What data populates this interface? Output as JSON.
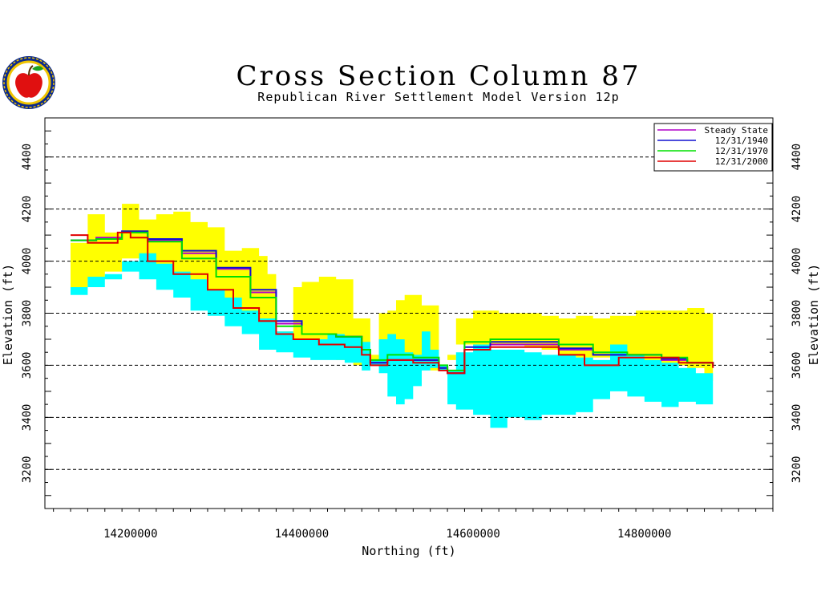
{
  "title": "Cross Section Column 87",
  "subtitle": "Republican River Settlement Model Version 12p",
  "chart_data": {
    "type": "area",
    "xlabel": "Northing (ft)",
    "ylabel": "Elevation (ft)",
    "xlim": [
      14100000,
      14950000
    ],
    "ylim": [
      3050,
      4550
    ],
    "xticks": [
      14200000,
      14400000,
      14600000,
      14800000
    ],
    "xticklabels": [
      "14200000",
      "14400000",
      "14600000",
      "14800000"
    ],
    "yticks": [
      3200,
      3400,
      3600,
      3800,
      4000,
      4200,
      4400
    ],
    "yticklabels": [
      "3200",
      "3400",
      "3600",
      "3800",
      "4000",
      "4200",
      "4400"
    ],
    "grid": "horizontal dashed",
    "legend_position": "top-right",
    "bands": [
      {
        "name": "upper layer",
        "color": "#ffff00",
        "x": [
          14130000,
          14150000,
          14170000,
          14190000,
          14210000,
          14230000,
          14250000,
          14270000,
          14290000,
          14310000,
          14330000,
          14350000,
          14360000,
          14370000,
          14380000,
          14390000,
          14400000,
          14420000,
          14440000,
          14460000,
          14480000,
          14490000,
          14500000,
          14510000,
          14520000,
          14540000,
          14550000,
          14560000,
          14570000,
          14580000,
          14600000,
          14630000,
          14660000,
          14680000,
          14700000,
          14720000,
          14740000,
          14760000,
          14790000,
          14820000,
          14850000,
          14870000,
          14880000
        ],
        "top": [
          4070,
          4180,
          4110,
          4220,
          4160,
          4180,
          4190,
          4150,
          4130,
          4040,
          4050,
          4020,
          3950,
          3730,
          3730,
          3900,
          3920,
          3940,
          3930,
          3780,
          3640,
          3800,
          3810,
          3850,
          3870,
          3830,
          3830,
          3590,
          3620,
          3780,
          3810,
          3800,
          3800,
          3790,
          3780,
          3790,
          3780,
          3790,
          3810,
          3810,
          3820,
          3800,
          3680
        ],
        "bottom": [
          3870,
          3900,
          3930,
          3960,
          4010,
          3990,
          3950,
          3920,
          3880,
          3850,
          3800,
          3770,
          3760,
          3720,
          3720,
          3700,
          3690,
          3680,
          3660,
          3620,
          3600,
          3610,
          3630,
          3630,
          3620,
          3610,
          3600,
          3580,
          3580,
          3640,
          3680,
          3680,
          3680,
          3670,
          3660,
          3640,
          3630,
          3630,
          3620,
          3610,
          3600,
          3590,
          3540
        ]
      },
      {
        "name": "lower layer",
        "color": "#00ffff",
        "x": [
          14130000,
          14150000,
          14170000,
          14190000,
          14210000,
          14230000,
          14250000,
          14270000,
          14290000,
          14310000,
          14330000,
          14350000,
          14370000,
          14390000,
          14410000,
          14430000,
          14450000,
          14470000,
          14480000,
          14490000,
          14500000,
          14510000,
          14520000,
          14530000,
          14540000,
          14550000,
          14560000,
          14570000,
          14580000,
          14600000,
          14620000,
          14640000,
          14660000,
          14680000,
          14700000,
          14720000,
          14740000,
          14760000,
          14780000,
          14800000,
          14820000,
          14840000,
          14860000,
          14880000
        ],
        "top": [
          3870,
          3900,
          3950,
          4000,
          4030,
          3990,
          3960,
          3930,
          3890,
          3860,
          3810,
          3780,
          3730,
          3700,
          3700,
          3720,
          3710,
          3690,
          3620,
          3700,
          3720,
          3700,
          3650,
          3640,
          3730,
          3660,
          3600,
          3580,
          3650,
          3680,
          3660,
          3660,
          3650,
          3640,
          3640,
          3630,
          3620,
          3680,
          3640,
          3620,
          3610,
          3590,
          3570,
          3540
        ],
        "bottom": [
          3790,
          3900,
          3940,
          3930,
          3960,
          3930,
          3890,
          3860,
          3810,
          3790,
          3750,
          3720,
          3660,
          3650,
          3630,
          3620,
          3620,
          3610,
          3580,
          3600,
          3570,
          3480,
          3450,
          3470,
          3520,
          3580,
          3590,
          3580,
          3450,
          3430,
          3410,
          3360,
          3400,
          3390,
          3410,
          3410,
          3420,
          3470,
          3500,
          3480,
          3460,
          3440,
          3460,
          3450
        ]
      }
    ],
    "series": [
      {
        "name": "Steady State",
        "color": "#b000c8",
        "x": [
          14130000,
          14160000,
          14190000,
          14220000,
          14260000,
          14300000,
          14340000,
          14370000,
          14400000,
          14440000,
          14470000,
          14480000,
          14500000,
          14530000,
          14560000,
          14570000,
          14590000,
          14620000,
          14660000,
          14700000,
          14740000,
          14780000,
          14820000,
          14850000,
          14880000
        ],
        "y": [
          4080,
          4090,
          4110,
          4080,
          4030,
          3970,
          3880,
          3760,
          3720,
          3710,
          3660,
          3610,
          3620,
          3620,
          3590,
          3570,
          3660,
          3680,
          3680,
          3660,
          3640,
          3640,
          3620,
          3610,
          3600
        ]
      },
      {
        "name": "12/31/1940",
        "color": "#1010d0",
        "x": [
          14130000,
          14160000,
          14190000,
          14220000,
          14260000,
          14300000,
          14340000,
          14370000,
          14400000,
          14440000,
          14470000,
          14480000,
          14500000,
          14530000,
          14560000,
          14570000,
          14590000,
          14620000,
          14660000,
          14700000,
          14740000,
          14780000,
          14820000,
          14850000,
          14880000
        ],
        "y": [
          4080,
          4085,
          4115,
          4085,
          4040,
          3975,
          3890,
          3770,
          3720,
          3710,
          3660,
          3610,
          3620,
          3620,
          3590,
          3570,
          3670,
          3690,
          3690,
          3665,
          3640,
          3640,
          3625,
          3610,
          3595
        ]
      },
      {
        "name": "12/31/1970",
        "color": "#00e000",
        "x": [
          14130000,
          14160000,
          14190000,
          14220000,
          14260000,
          14300000,
          14340000,
          14370000,
          14400000,
          14440000,
          14470000,
          14480000,
          14500000,
          14530000,
          14560000,
          14570000,
          14590000,
          14620000,
          14660000,
          14700000,
          14740000,
          14780000,
          14820000,
          14850000,
          14880000
        ],
        "y": [
          4080,
          4085,
          4110,
          4075,
          4010,
          3940,
          3860,
          3750,
          3720,
          3710,
          3660,
          3620,
          3640,
          3630,
          3600,
          3580,
          3690,
          3700,
          3700,
          3680,
          3650,
          3640,
          3630,
          3610,
          3600
        ]
      },
      {
        "name": "12/31/2000",
        "color": "#e00000",
        "x": [
          14130000,
          14150000,
          14170000,
          14185000,
          14200000,
          14220000,
          14250000,
          14290000,
          14320000,
          14350000,
          14370000,
          14390000,
          14420000,
          14450000,
          14470000,
          14480000,
          14500000,
          14530000,
          14560000,
          14570000,
          14590000,
          14620000,
          14660000,
          14700000,
          14730000,
          14770000,
          14800000,
          14840000,
          14880000
        ],
        "y": [
          4100,
          4070,
          4070,
          4110,
          4090,
          4000,
          3950,
          3890,
          3820,
          3770,
          3720,
          3700,
          3680,
          3670,
          3640,
          3600,
          3620,
          3610,
          3580,
          3570,
          3660,
          3670,
          3670,
          3640,
          3600,
          3630,
          3630,
          3610,
          3590
        ]
      }
    ]
  }
}
